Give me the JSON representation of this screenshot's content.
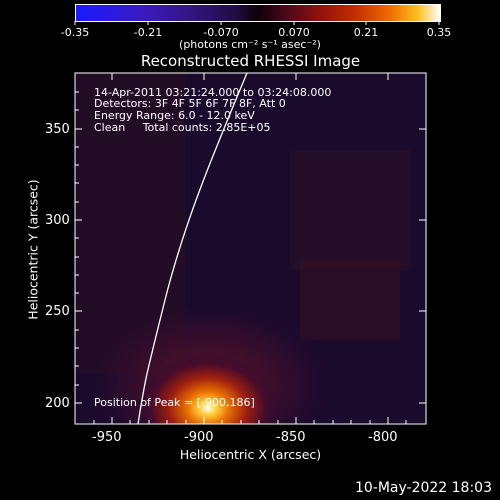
{
  "colorbar": {
    "ticks": [
      "-0.35",
      "-0.21",
      "-0.070",
      "0.070",
      "0.21",
      "0.35"
    ],
    "units": "(photons cm⁻² s⁻¹ asec⁻²)"
  },
  "plot": {
    "title": "Reconstructed RHESSI Image",
    "info": {
      "line1": "14-Apr-2011 03:21:24.000 to 03:24:08.000",
      "line2": "Detectors: 3F 4F 5F 6F 7F 8F, Att 0",
      "line3": "Energy Range: 6.0 - 12.0 keV",
      "line4": "Clean     Total counts: 2.85E+05"
    },
    "peak_label": "Position of Peak = [-900,186]",
    "xlabel": "Heliocentric X (arcsec)",
    "ylabel": "Heliocentric Y (arcsec)",
    "xticks": [
      "-950",
      "-900",
      "-850",
      "-800"
    ],
    "yticks": [
      "350",
      "300",
      "250",
      "200"
    ]
  },
  "footer": {
    "timestamp": "10-May-2022 18:03"
  },
  "colors": {
    "background": "#000000",
    "limb_line": "#ffffff"
  }
}
